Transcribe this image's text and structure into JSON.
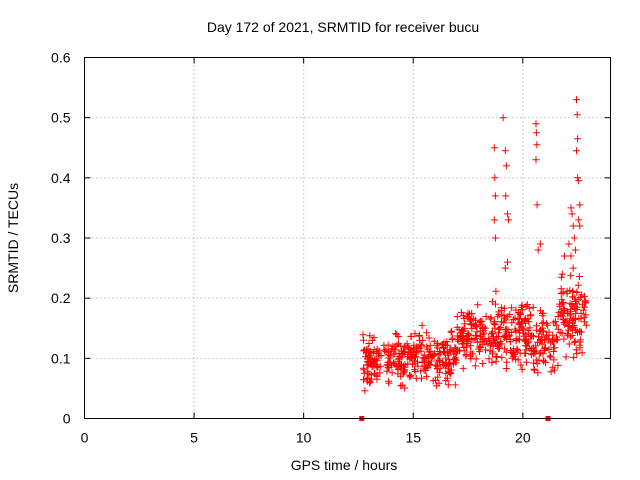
{
  "chart_data": {
    "type": "scatter",
    "title": "Day 172 of 2021, SRMTID for receiver bucu",
    "xlabel": "GPS time / hours",
    "ylabel": "SRMTID / TECUs",
    "xlim": [
      0,
      24
    ],
    "ylim": [
      0,
      0.6
    ],
    "xticks": [
      0,
      5,
      10,
      15,
      20
    ],
    "xtick_labels": [
      "0",
      "5",
      "10",
      "15",
      "20"
    ],
    "yticks": [
      0,
      0.1,
      0.2,
      0.3,
      0.4,
      0.5,
      0.6
    ],
    "ytick_labels": [
      "0",
      "0.1",
      "0.2",
      "0.3",
      "0.4",
      "0.5",
      "0.6"
    ],
    "grid": true,
    "series": [
      {
        "name": "SRMTID",
        "color": "#ff0000",
        "marker": "plus",
        "clusters": [
          {
            "x_range": [
              12.7,
              17.0
            ],
            "y_range": [
              0.04,
              0.16
            ],
            "count": 320
          },
          {
            "x_range": [
              17.0,
              18.5
            ],
            "y_range": [
              0.07,
              0.2
            ],
            "count": 110
          },
          {
            "x_range": [
              18.5,
              20.3
            ],
            "y_range": [
              0.06,
              0.22
            ],
            "count": 150
          },
          {
            "x_range": [
              20.3,
              21.6
            ],
            "y_range": [
              0.06,
              0.2
            ],
            "count": 90
          },
          {
            "x_range": [
              21.6,
              22.9
            ],
            "y_range": [
              0.08,
              0.26
            ],
            "count": 110
          }
        ],
        "points": [
          {
            "x": 18.7,
            "y": 0.45
          },
          {
            "x": 18.72,
            "y": 0.4
          },
          {
            "x": 18.75,
            "y": 0.37
          },
          {
            "x": 18.7,
            "y": 0.33
          },
          {
            "x": 18.75,
            "y": 0.3
          },
          {
            "x": 19.1,
            "y": 0.5
          },
          {
            "x": 19.2,
            "y": 0.445
          },
          {
            "x": 19.25,
            "y": 0.42
          },
          {
            "x": 19.22,
            "y": 0.37
          },
          {
            "x": 19.3,
            "y": 0.34
          },
          {
            "x": 19.35,
            "y": 0.33
          },
          {
            "x": 19.3,
            "y": 0.26
          },
          {
            "x": 19.2,
            "y": 0.25
          },
          {
            "x": 20.6,
            "y": 0.49
          },
          {
            "x": 20.62,
            "y": 0.475
          },
          {
            "x": 20.64,
            "y": 0.455
          },
          {
            "x": 20.6,
            "y": 0.43
          },
          {
            "x": 20.65,
            "y": 0.355
          },
          {
            "x": 20.7,
            "y": 0.28
          },
          {
            "x": 20.8,
            "y": 0.29
          },
          {
            "x": 22.2,
            "y": 0.35
          },
          {
            "x": 22.25,
            "y": 0.34
          },
          {
            "x": 22.3,
            "y": 0.32
          },
          {
            "x": 22.35,
            "y": 0.3
          },
          {
            "x": 22.4,
            "y": 0.28
          },
          {
            "x": 22.45,
            "y": 0.53
          },
          {
            "x": 22.48,
            "y": 0.505
          },
          {
            "x": 22.5,
            "y": 0.465
          },
          {
            "x": 22.45,
            "y": 0.445
          },
          {
            "x": 22.5,
            "y": 0.4
          },
          {
            "x": 22.55,
            "y": 0.395
          },
          {
            "x": 22.6,
            "y": 0.355
          },
          {
            "x": 22.55,
            "y": 0.33
          },
          {
            "x": 22.6,
            "y": 0.32
          },
          {
            "x": 22.1,
            "y": 0.29
          },
          {
            "x": 22.2,
            "y": 0.27
          },
          {
            "x": 22.3,
            "y": 0.25
          },
          {
            "x": 21.8,
            "y": 0.24
          },
          {
            "x": 21.9,
            "y": 0.27
          }
        ],
        "zero_points": [
          {
            "x": 12.65,
            "y": 0.0
          },
          {
            "x": 21.15,
            "y": 0.0
          }
        ]
      }
    ]
  }
}
